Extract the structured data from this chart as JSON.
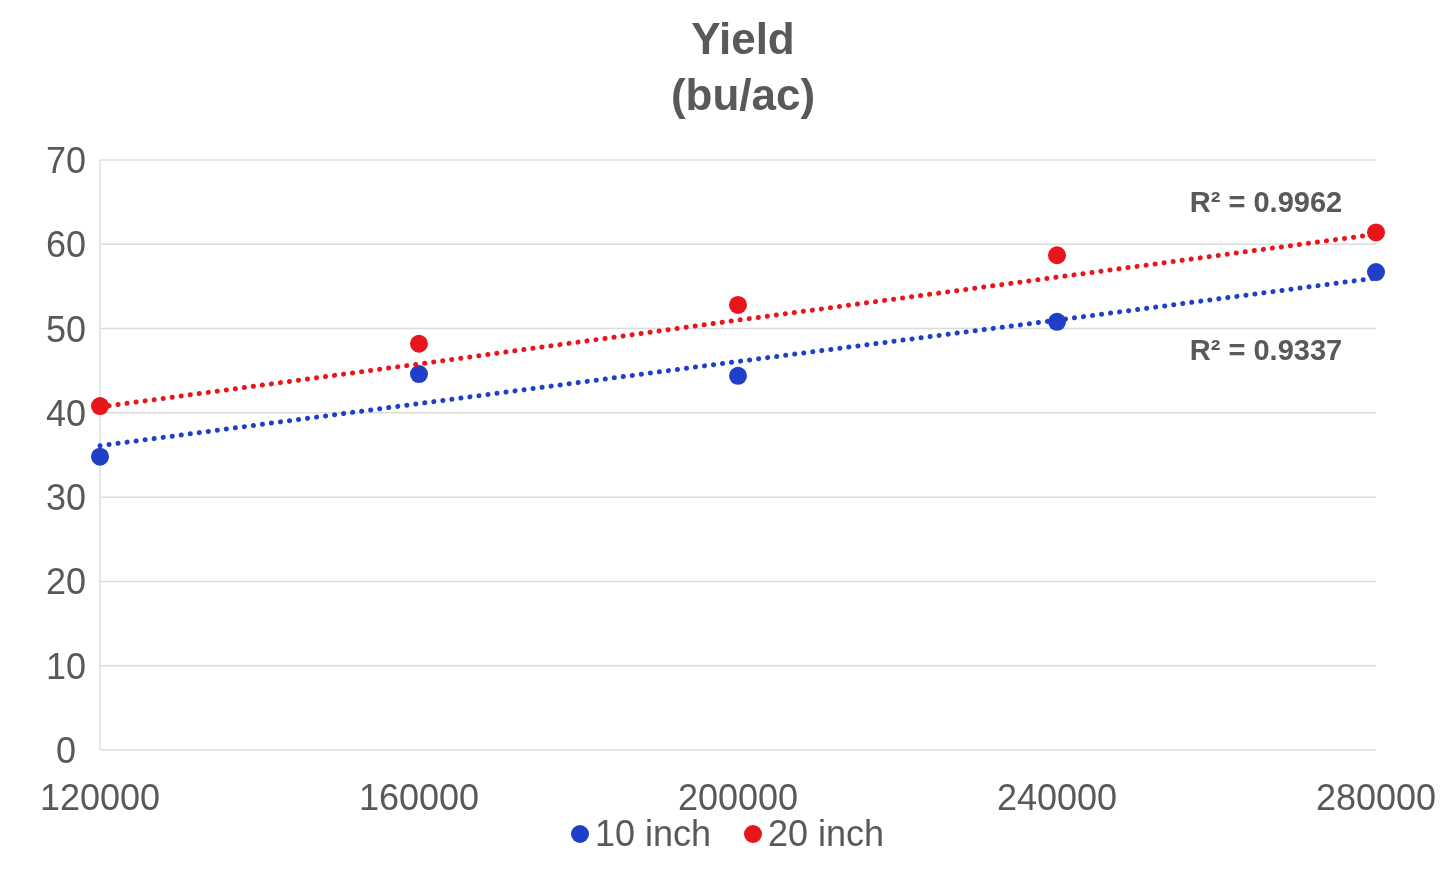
{
  "chart_data": {
    "type": "scatter",
    "title": "Yield\n(bu/ac)",
    "x": [
      120000,
      160000,
      200000,
      240000,
      280000
    ],
    "series": [
      {
        "name": "10 inch",
        "color": "#1f3fc8",
        "values": [
          34.8,
          44.6,
          44.4,
          50.8,
          56.7
        ],
        "marker": "circle"
      },
      {
        "name": "20 inch",
        "color": "#e8151b",
        "values": [
          40.8,
          48.2,
          52.8,
          58.7,
          61.4
        ],
        "marker": "circle"
      },
      {
        "type": "line",
        "color": "#1f3fc8",
        "values": [
          36.1,
          41.1,
          46.1,
          51.0,
          56.0
        ],
        "line_style": "dotted",
        "marker": "none"
      },
      {
        "type": "line",
        "color": "#e8151b",
        "values": [
          40.7,
          45.8,
          51.0,
          56.1,
          61.2
        ],
        "line_style": "dotted",
        "marker": "none"
      }
    ],
    "annotations": [
      "R² = 0.9962",
      "R² = 0.9337"
    ],
    "xlim": [
      120000,
      280000
    ],
    "xticks": [
      120000,
      160000,
      200000,
      240000,
      280000
    ],
    "ylim": [
      0,
      70
    ],
    "yticks": [
      0,
      10,
      20,
      30,
      40,
      50,
      60,
      70
    ],
    "grid": "y",
    "legend": "bottom"
  }
}
